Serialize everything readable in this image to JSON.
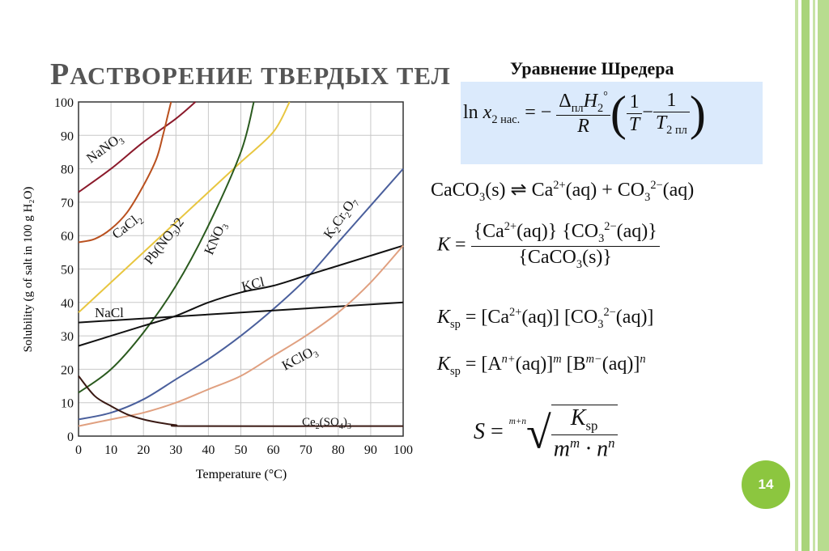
{
  "slide": {
    "title_first": "Р",
    "title_rest": "АСТВОРЕНИЕ ТВЕРДЫХ ТЕЛ",
    "subtitle": "Уравнение Шредера",
    "page_number": "14",
    "accent_color": "#8cc63f",
    "box_color": "#dbeafc"
  },
  "equations": {
    "schroeder": {
      "lhs": "ln ",
      "x": "x",
      "x_sub": "2 нас.",
      "eq": " = −",
      "num_delta": "Δ",
      "num_delta_sub": "пл",
      "num_H": "H",
      "num_H_sub": "2",
      "num_H_sup": "°",
      "den": "R",
      "one1": "1",
      "T1": "T",
      "minus": "−",
      "one2": "1",
      "T2": "T",
      "T2_sub": "2 пл"
    },
    "equilibrium": {
      "a": "CaCO",
      "a_sub": "3",
      "a_s": "(s) ⇌ Ca",
      "ca_sup": "2+",
      "b": "(aq) + CO",
      "co_sub": "3",
      "co_sup": "2−",
      "c": "(aq)"
    },
    "K": {
      "lhs": "K",
      "eq": " = ",
      "num1": "{Ca",
      "num1_sup": "2+",
      "num1b": "(aq)} {CO",
      "num2_sub": "3",
      "num2_sup": "2−",
      "num2b": "(aq)}",
      "den": "{CaCO",
      "den_sub": "3",
      "den_b": "(s)}"
    },
    "Ksp1": {
      "lhs": "K",
      "lhs_sub": "sp",
      "rhs1": " = [Ca",
      "sup1": "2+",
      "rhs2": "(aq)] [CO",
      "sub2": "3",
      "sup2": "2−",
      "rhs3": "(aq)]"
    },
    "Ksp2": {
      "lhs": "K",
      "lhs_sub": "sp",
      "rhs1": " = [A",
      "sup1": "n+",
      "rhs2": "(aq)]",
      "sup2": "m",
      "rhs3": " [B",
      "sup3": "m−",
      "rhs4": "(aq)]",
      "sup4": "n"
    },
    "S": {
      "lhs": "S",
      "eq": " = ",
      "index": "m+n",
      "num": "K",
      "num_sub": "sp",
      "den": "m",
      "den_sup1": "m",
      "den_dot": " · n",
      "den_sup2": "n"
    }
  },
  "chart_data": {
    "type": "line",
    "xlabel": "Temperature (°C)",
    "ylabel": "Solubility (g of salt in 100 g H₂O)",
    "xlim": [
      0,
      100
    ],
    "ylim": [
      0,
      100
    ],
    "xticks": [
      0,
      10,
      20,
      30,
      40,
      50,
      60,
      70,
      80,
      90,
      100
    ],
    "yticks": [
      0,
      10,
      20,
      30,
      40,
      50,
      60,
      70,
      80,
      90,
      100
    ],
    "grid": true,
    "series": [
      {
        "name": "NaNO3",
        "label": "NaNO",
        "sub": "3",
        "color": "#8b1a2b",
        "x": [
          0,
          10,
          20,
          30,
          36
        ],
        "y": [
          73,
          80,
          88,
          95,
          100
        ]
      },
      {
        "name": "CaCl2",
        "label": "CaCl",
        "sub": "2",
        "color": "#b9501e",
        "x": [
          0,
          5,
          10,
          15,
          20,
          24,
          26,
          27.5,
          28.5
        ],
        "y": [
          58,
          59,
          62,
          67,
          75,
          83,
          90,
          96,
          100
        ]
      },
      {
        "name": "Pb(NO3)2",
        "label": "Pb(NO",
        "sub": "3",
        "label2": ")2",
        "color": "#e8c640",
        "x": [
          0,
          10,
          20,
          30,
          40,
          50,
          60,
          65
        ],
        "y": [
          37,
          46,
          55,
          64,
          73,
          82,
          91,
          100
        ]
      },
      {
        "name": "KNO3",
        "label": "KNO",
        "sub": "3",
        "color": "#2a5a1e",
        "x": [
          0,
          10,
          20,
          30,
          40,
          50,
          54
        ],
        "y": [
          13,
          20,
          31,
          45,
          63,
          85,
          100
        ]
      },
      {
        "name": "K2Cr2O7",
        "label": "K",
        "sub": "2",
        "label2": "Cr",
        "sub2": "2",
        "label3": "O",
        "sub3": "7",
        "color": "#4a5f9c",
        "x": [
          0,
          10,
          20,
          30,
          40,
          50,
          60,
          70,
          80,
          90,
          100
        ],
        "y": [
          5,
          7,
          11,
          17,
          23,
          30,
          38,
          47,
          58,
          69,
          80
        ]
      },
      {
        "name": "KCl",
        "label": "KCl",
        "color": "#111111",
        "x": [
          0,
          10,
          20,
          30,
          40,
          50,
          60,
          70,
          80,
          90,
          100
        ],
        "y": [
          27,
          30,
          33,
          36,
          40,
          43,
          45,
          48,
          51,
          54,
          57
        ]
      },
      {
        "name": "NaCl",
        "label": "NaCl",
        "color": "#111111",
        "x": [
          0,
          100
        ],
        "y": [
          34,
          40
        ]
      },
      {
        "name": "KClO3",
        "label": "KClO",
        "sub": "3",
        "color": "#e0a080",
        "x": [
          0,
          10,
          20,
          30,
          40,
          50,
          60,
          70,
          80,
          90,
          100
        ],
        "y": [
          3,
          5,
          7,
          10,
          14,
          18,
          24,
          30,
          37,
          46,
          57
        ]
      },
      {
        "name": "Ce2(SO4)3",
        "label": "Ce",
        "sub": "2",
        "label2": "(SO",
        "sub2": "4",
        "label3": ")",
        "sub3": "3",
        "color": "#3a1a14",
        "x": [
          0,
          5,
          10,
          15,
          20,
          25,
          30,
          35,
          100
        ],
        "y": [
          18,
          12,
          9,
          6.5,
          5,
          4,
          3.3,
          3,
          3
        ]
      }
    ]
  }
}
